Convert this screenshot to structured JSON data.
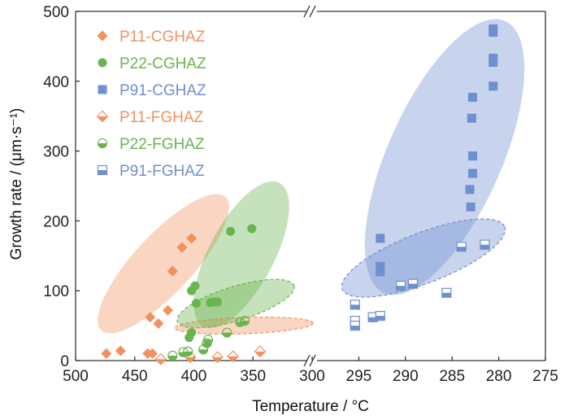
{
  "chart_data": {
    "type": "scatter",
    "xlabel": "Temperature / °C",
    "ylabel": "Growth rate / (μm·s⁻¹)",
    "ylim": [
      0,
      500
    ],
    "yticks": [
      0,
      100,
      200,
      300,
      400,
      500
    ],
    "x_axis": {
      "broken": true,
      "left_segment": {
        "range": [
          500,
          300
        ],
        "ticks": [
          500,
          450,
          400,
          350,
          300
        ]
      },
      "right_segment": {
        "range": [
          300,
          275
        ],
        "ticks": [
          295,
          290,
          285,
          280,
          275
        ]
      }
    },
    "grid": false,
    "legend_position": "top-left",
    "colors": {
      "P11": "#f0915e",
      "P22": "#69b44f",
      "P91": "#6f8fcf"
    },
    "series": [
      {
        "name": "P11-CGHAZ",
        "marker": "diamond-filled",
        "color": "#f0915e",
        "points": [
          [
            474,
            10
          ],
          [
            462,
            14
          ],
          [
            437,
            62
          ],
          [
            430,
            53
          ],
          [
            422,
            72
          ],
          [
            418,
            128
          ],
          [
            410,
            162
          ],
          [
            402,
            175
          ],
          [
            439,
            10
          ],
          [
            435,
            10
          ]
        ]
      },
      {
        "name": "P22-CGHAZ",
        "marker": "circle-filled",
        "color": "#69b44f",
        "points": [
          [
            402,
            100
          ],
          [
            399,
            107
          ],
          [
            398,
            82
          ],
          [
            386,
            83
          ],
          [
            382,
            84
          ],
          [
            380,
            84
          ],
          [
            369,
            185
          ],
          [
            351,
            189
          ],
          [
            402,
            40
          ],
          [
            404,
            33
          ]
        ]
      },
      {
        "name": "P91-CGHAZ",
        "marker": "square-filled",
        "color": "#6f8fcf",
        "points": [
          [
            292.7,
            175
          ],
          [
            292.7,
            135
          ],
          [
            292.7,
            127
          ],
          [
            280.6,
            475
          ],
          [
            280.6,
            470
          ],
          [
            280.6,
            433
          ],
          [
            280.6,
            427
          ],
          [
            280.6,
            393
          ],
          [
            282.8,
            377
          ],
          [
            282.9,
            347
          ],
          [
            282.8,
            293
          ],
          [
            282.8,
            268
          ],
          [
            283.1,
            245
          ],
          [
            283.0,
            220
          ]
        ]
      },
      {
        "name": "P11-FGHAZ",
        "marker": "diamond-half",
        "color": "#f0915e",
        "points": [
          [
            428,
            2
          ],
          [
            403,
            5
          ],
          [
            380,
            5
          ],
          [
            367,
            6
          ],
          [
            344,
            13
          ]
        ]
      },
      {
        "name": "P22-FGHAZ",
        "marker": "circle-half",
        "color": "#69b44f",
        "points": [
          [
            418,
            7
          ],
          [
            409,
            12
          ],
          [
            405,
            13
          ],
          [
            392,
            16
          ],
          [
            389,
            25
          ],
          [
            388,
            30
          ],
          [
            372,
            40
          ],
          [
            361,
            55
          ],
          [
            357,
            57
          ]
        ]
      },
      {
        "name": "P91-FGHAZ",
        "marker": "square-half",
        "color": "#6f8fcf",
        "points": [
          [
            295.4,
            80
          ],
          [
            295.4,
            57
          ],
          [
            295.4,
            50
          ],
          [
            293.5,
            62
          ],
          [
            292.7,
            64
          ],
          [
            290.5,
            107
          ],
          [
            289.2,
            110
          ],
          [
            285.6,
            97
          ],
          [
            284,
            163
          ],
          [
            281.5,
            166
          ]
        ]
      }
    ]
  }
}
